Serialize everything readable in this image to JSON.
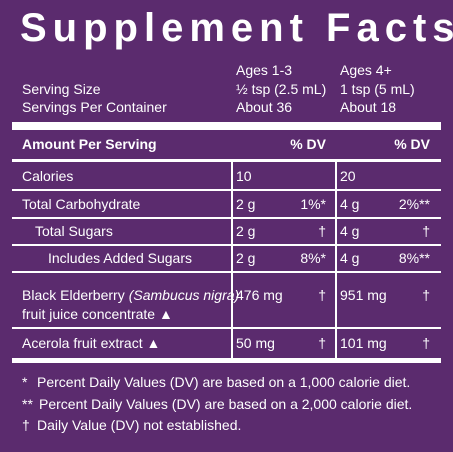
{
  "title": "Supplement Facts",
  "header": {
    "columns": [
      "Ages 1-3",
      "Ages 4+"
    ],
    "rows": [
      {
        "label": "Serving Size",
        "values": [
          "½ tsp (2.5 mL)",
          "1 tsp (5 mL)"
        ]
      },
      {
        "label": "Servings Per Container",
        "values": [
          "About 36",
          "About 18"
        ]
      }
    ]
  },
  "table": {
    "heading": "Amount Per Serving",
    "dv_headings": [
      "% DV",
      "% DV"
    ],
    "rows": [
      {
        "name": [
          "Calories"
        ],
        "indent": 0,
        "cells": [
          {
            "amount": "10"
          },
          {
            "amount": "20"
          }
        ]
      },
      {
        "name": [
          "Total Carbohydrate"
        ],
        "indent": 0,
        "cells": [
          {
            "amount": "2 g",
            "dv": "1%*"
          },
          {
            "amount": "4 g",
            "dv": "2%**"
          }
        ]
      },
      {
        "name": [
          "Total Sugars"
        ],
        "indent": 1,
        "cells": [
          {
            "amount": "2 g",
            "dv": "†"
          },
          {
            "amount": "4 g",
            "dv": "†"
          }
        ]
      },
      {
        "name": [
          "Includes Added Sugars"
        ],
        "indent": 2,
        "cells": [
          {
            "amount": "2 g",
            "dv": "8%*"
          },
          {
            "amount": "4 g",
            "dv": "8%**"
          }
        ]
      },
      {
        "name": [
          "Black Elderberry",
          "(Sambucus nigra)",
          "fruit juice concentrate ▲"
        ],
        "indent": 0,
        "cells": [
          {
            "amount": "476 mg",
            "dv": "†"
          },
          {
            "amount": "951 mg",
            "dv": "†"
          }
        ]
      },
      {
        "name": [
          "Acerola fruit extract ▲"
        ],
        "indent": 0,
        "cells": [
          {
            "amount": "50 mg",
            "dv": "†"
          },
          {
            "amount": "101 mg",
            "dv": "†"
          }
        ]
      }
    ]
  },
  "footnotes": [
    {
      "mark": "*",
      "text": "Percent Daily Values (DV) are based on a 1,000 calorie diet."
    },
    {
      "mark": "**",
      "text": "Percent Daily Values (DV) are based on a 2,000 calorie diet."
    },
    {
      "mark": "†",
      "text": "Daily Value (DV) not established."
    }
  ]
}
